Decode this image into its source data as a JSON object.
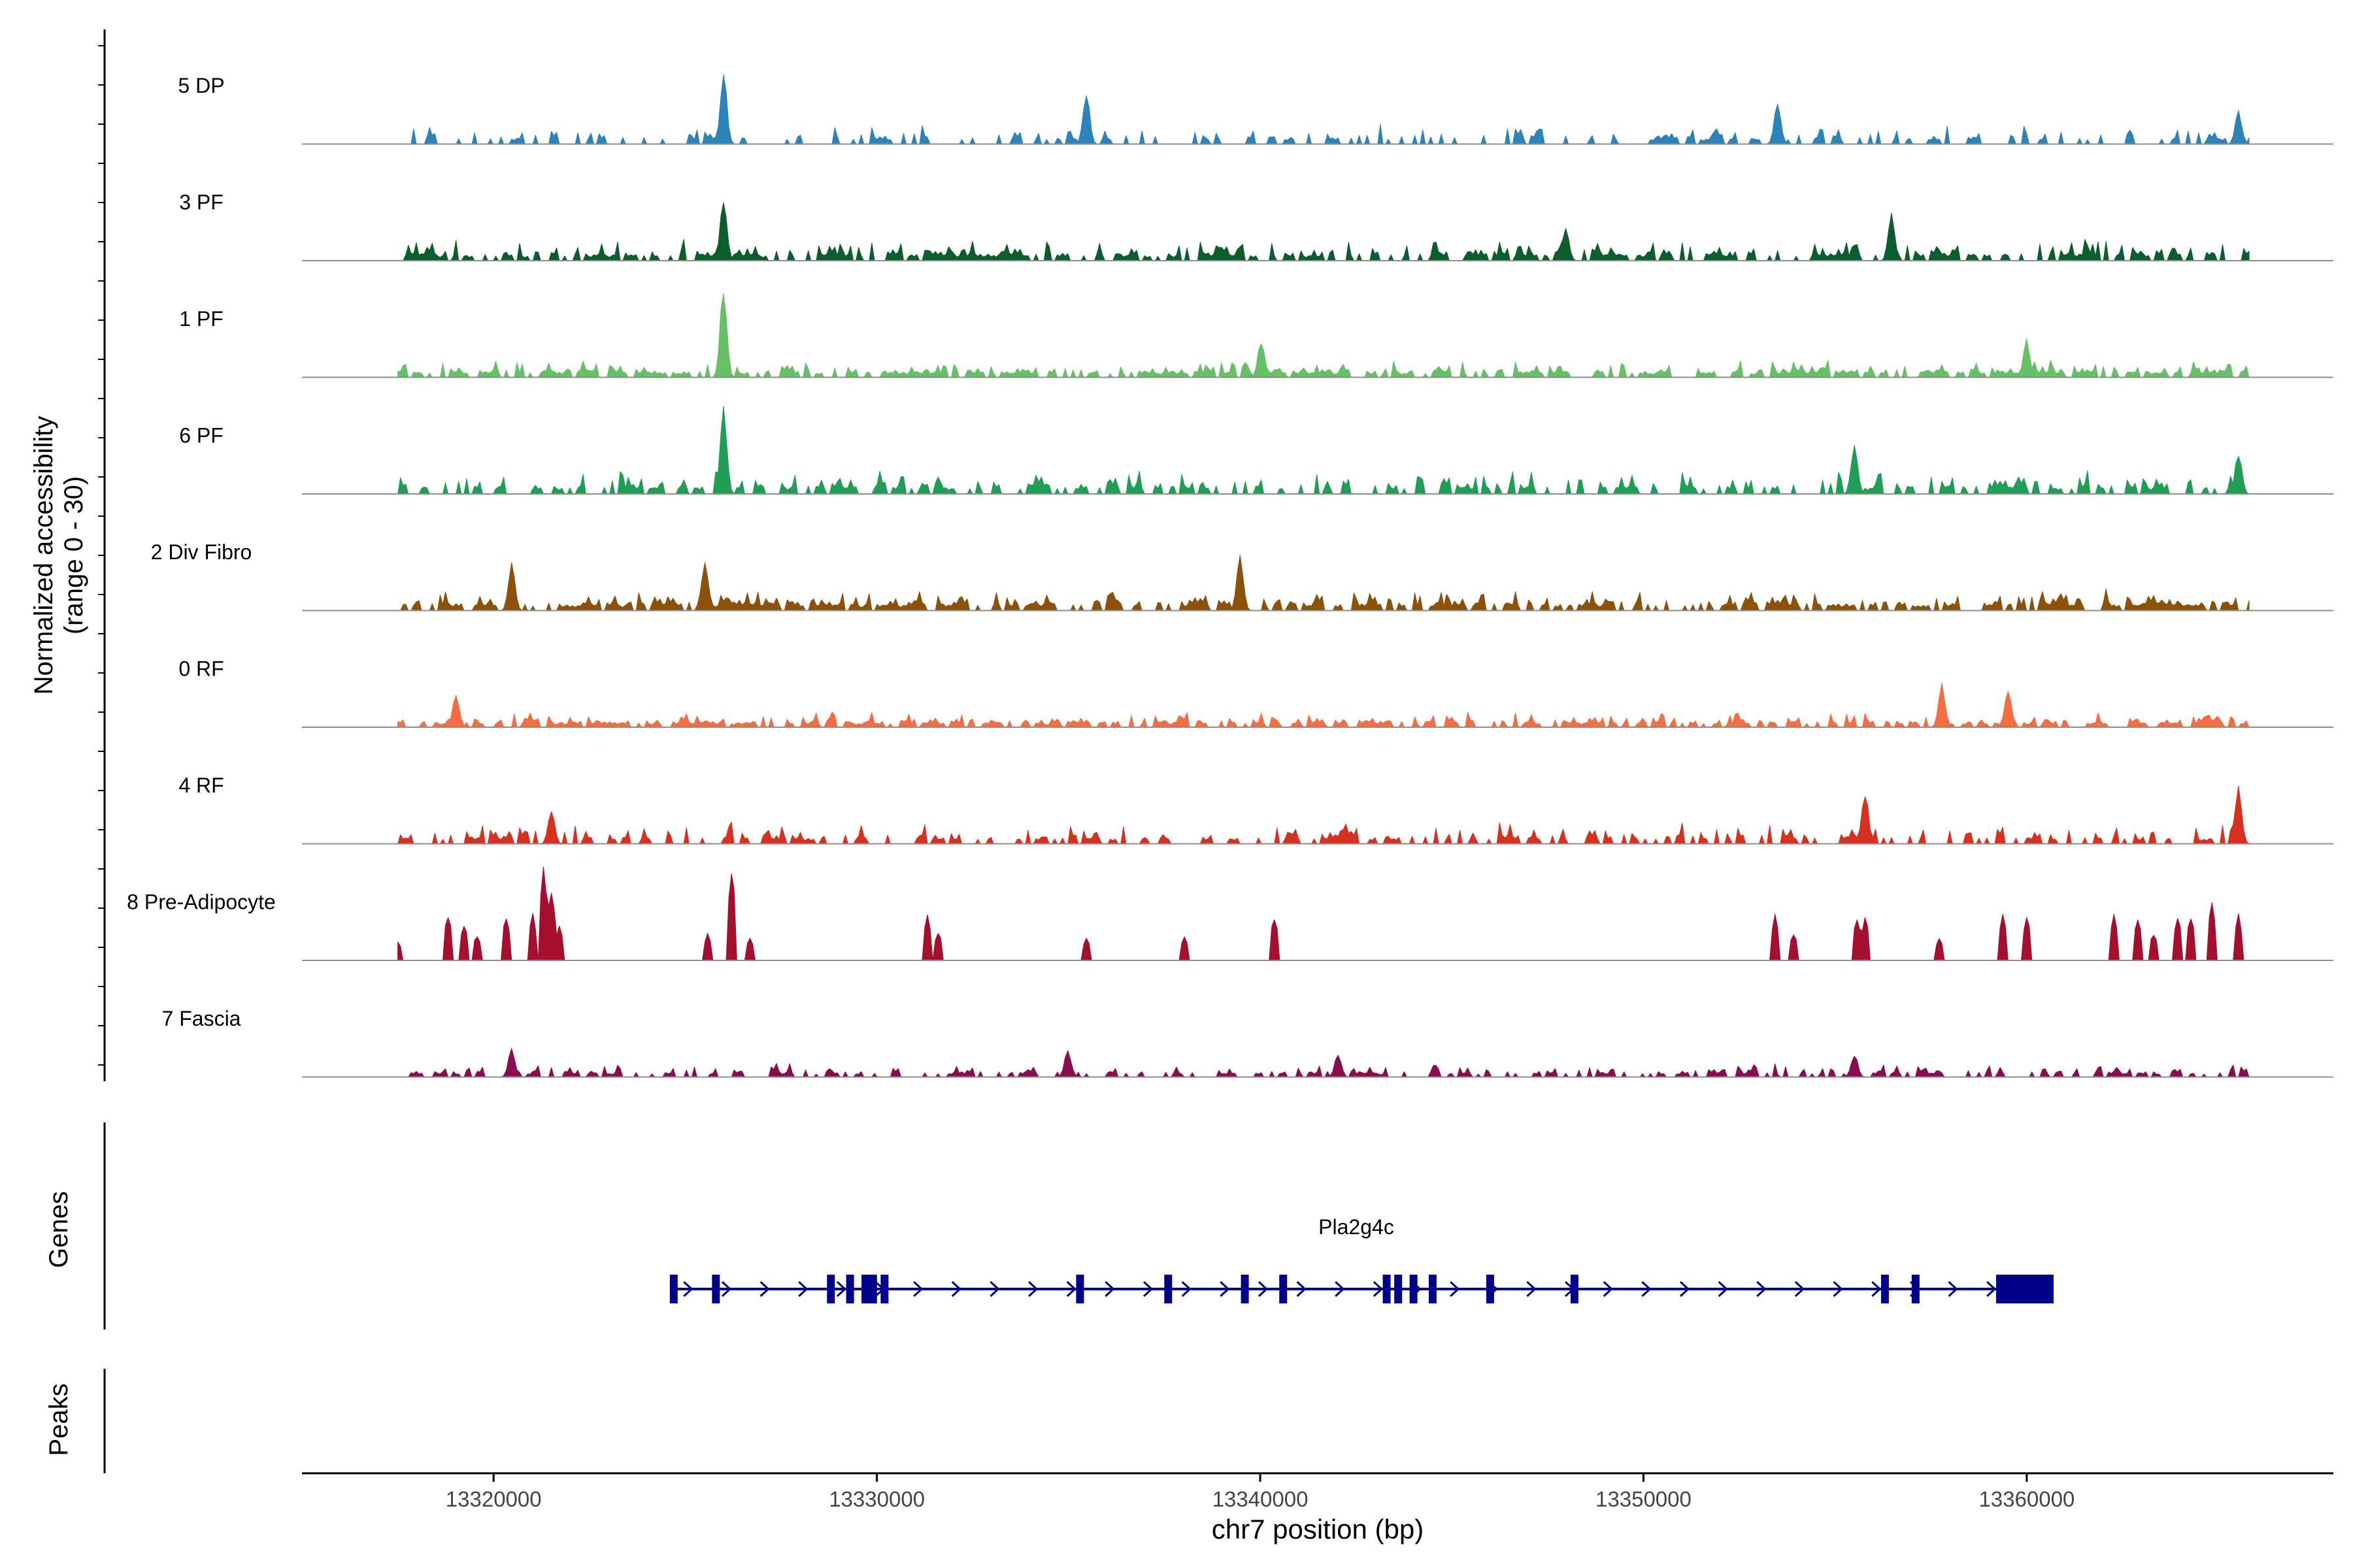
{
  "chart_data": {
    "type": "coverage",
    "chromosome": "chr7",
    "region_start": 13315000,
    "region_end": 13368000,
    "x_ticks": [
      13320000,
      13330000,
      13340000,
      13350000,
      13360000
    ],
    "x_tick_labels": [
      "13320000",
      "13330000",
      "13340000",
      "13350000",
      "13360000"
    ],
    "xlabel": "chr7 position (bp)",
    "ylabel_line1": "Normalized accessibility",
    "ylabel_line2": "(range 0 - 30)",
    "y_range": [
      0,
      30
    ],
    "panel_labels": {
      "genes": "Genes",
      "peaks": "Peaks"
    },
    "tracks": [
      {
        "name": "5 DP",
        "color": "#2b83ba",
        "density": 0.5,
        "amp": 0.3,
        "peaks": [
          [
            13326000,
            0.75
          ],
          [
            13335500,
            0.55
          ],
          [
            13353500,
            0.45
          ],
          [
            13365500,
            0.35
          ]
        ]
      },
      {
        "name": "3 PF",
        "color": "#0b5e2b",
        "density": 0.85,
        "amp": 0.3,
        "peaks": [
          [
            13326000,
            0.65
          ],
          [
            13356500,
            0.5
          ],
          [
            13348000,
            0.35
          ]
        ]
      },
      {
        "name": "1 PF",
        "color": "#66c166",
        "density": 0.95,
        "amp": 0.25,
        "peaks": [
          [
            13326000,
            1.0
          ],
          [
            13340000,
            0.4
          ],
          [
            13360000,
            0.4
          ]
        ]
      },
      {
        "name": "6 PF",
        "color": "#1f9e55",
        "density": 0.65,
        "amp": 0.35,
        "peaks": [
          [
            13326000,
            0.9
          ],
          [
            13355500,
            0.55
          ],
          [
            13365500,
            0.45
          ]
        ]
      },
      {
        "name": "2 Div Fibro",
        "color": "#8c510a",
        "density": 0.9,
        "amp": 0.3,
        "peaks": [
          [
            13339500,
            0.6
          ],
          [
            13325500,
            0.55
          ],
          [
            13320500,
            0.5
          ]
        ]
      },
      {
        "name": "0 RF",
        "color": "#f46d43",
        "density": 0.9,
        "amp": 0.22,
        "peaks": [
          [
            13357800,
            0.45
          ],
          [
            13319000,
            0.35
          ],
          [
            13359500,
            0.4
          ]
        ]
      },
      {
        "name": "4 RF",
        "color": "#d7301f",
        "density": 0.6,
        "amp": 0.3,
        "peaks": [
          [
            13355800,
            0.55
          ],
          [
            13365500,
            0.6
          ],
          [
            13321500,
            0.35
          ]
        ]
      },
      {
        "name": "8 Pre-Adipocyte",
        "color": "#a50f2d",
        "density": 0.0,
        "amp": 1.0,
        "peaks": [
          [
            13317500,
            0.22
          ],
          [
            13318800,
            0.48
          ],
          [
            13319200,
            0.38
          ],
          [
            13319600,
            0.28
          ],
          [
            13320300,
            0.48
          ],
          [
            13321300,
            1.0
          ],
          [
            13321500,
            0.75
          ],
          [
            13321700,
            0.4
          ],
          [
            13321000,
            0.5
          ],
          [
            13326200,
            0.98
          ],
          [
            13325600,
            0.3
          ],
          [
            13326700,
            0.25
          ],
          [
            13331300,
            0.48
          ],
          [
            13331600,
            0.32
          ],
          [
            13335500,
            0.25
          ],
          [
            13338000,
            0.25
          ],
          [
            13340400,
            0.48
          ],
          [
            13353400,
            0.48
          ],
          [
            13353900,
            0.3
          ],
          [
            13355600,
            0.48
          ],
          [
            13355800,
            0.48
          ],
          [
            13357700,
            0.25
          ],
          [
            13359400,
            0.48
          ],
          [
            13360000,
            0.48
          ],
          [
            13362300,
            0.48
          ],
          [
            13362900,
            0.48
          ],
          [
            13363900,
            0.48
          ],
          [
            13364300,
            0.48
          ],
          [
            13364800,
            0.65
          ],
          [
            13363300,
            0.3
          ],
          [
            13365500,
            0.48
          ]
        ]
      },
      {
        "name": "7 Fascia",
        "color": "#8b0a50",
        "density": 0.6,
        "amp": 0.2,
        "peaks": [
          [
            13320500,
            0.3
          ],
          [
            13335000,
            0.28
          ],
          [
            13342000,
            0.25
          ],
          [
            13355500,
            0.25
          ]
        ]
      }
    ],
    "gene": {
      "name": "Pla2g4c",
      "strand": "+",
      "start": 13324700,
      "end": 13360700,
      "color": "#00008b",
      "exons": [
        13324700,
        13325800,
        13328800,
        13329300,
        13329700,
        13329900,
        13330200,
        13335300,
        13337600,
        13339600,
        13340600,
        13343300,
        13343600,
        13344000,
        13344500,
        13346000,
        13348200,
        13356300,
        13357100
      ],
      "utr": [
        13359200,
        13360700
      ]
    },
    "peaks_track": []
  }
}
